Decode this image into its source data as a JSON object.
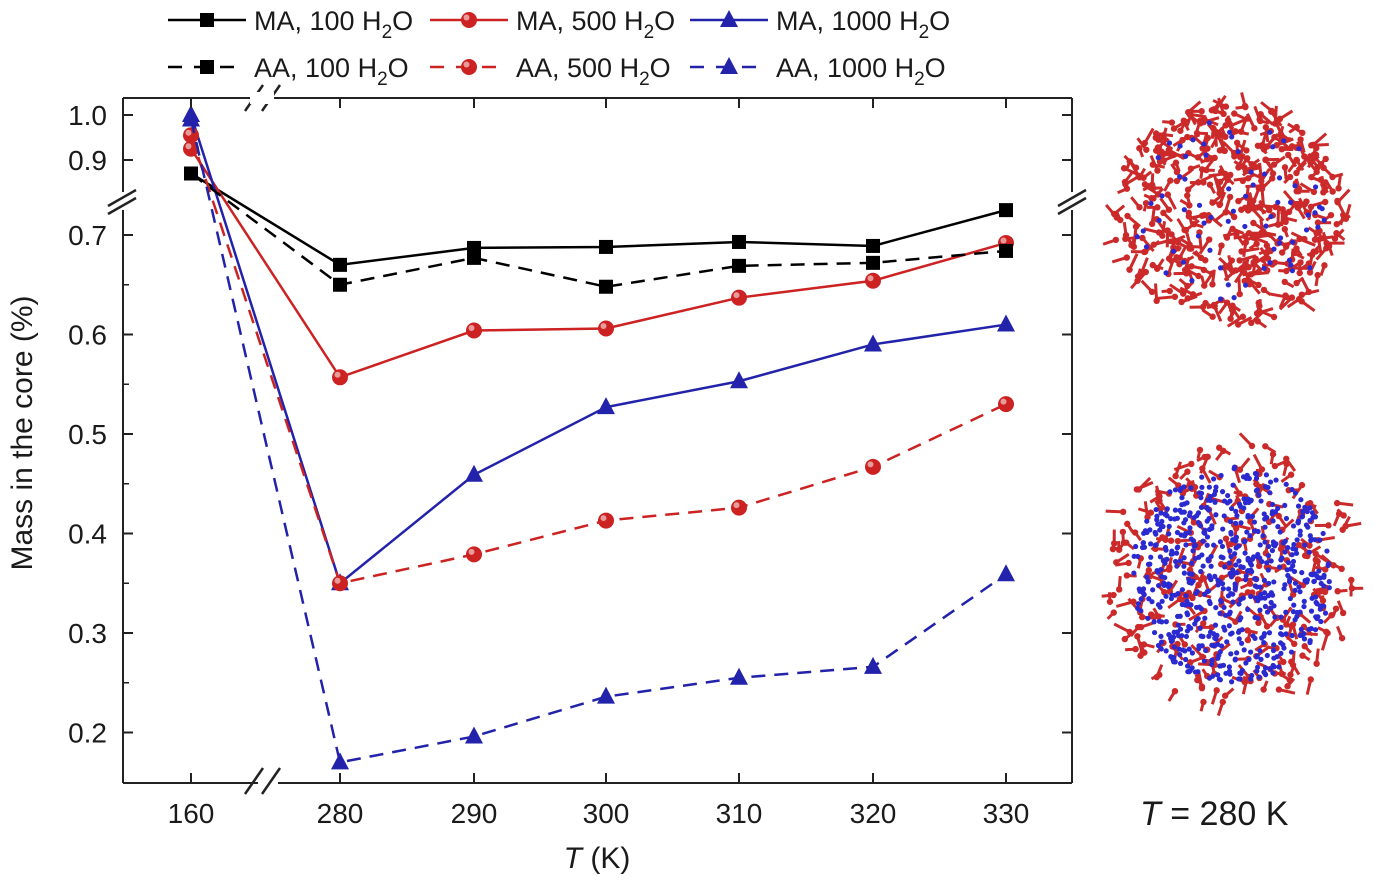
{
  "chart_data": {
    "type": "line",
    "xlabel_var": "T",
    "xlabel_unit": " (K)",
    "ylabel": "Mass in the core (%)",
    "x": [
      160,
      280,
      290,
      300,
      310,
      320,
      330
    ],
    "x_tick_labels": [
      "160",
      "280",
      "290",
      "300",
      "310",
      "320",
      "330"
    ],
    "y_ticks_lower": [
      0.2,
      0.3,
      0.4,
      0.5,
      0.6,
      0.7
    ],
    "y_ticks_upper": [
      0.9,
      1.0
    ],
    "ylim_lower": [
      0.15,
      0.75
    ],
    "ylim_upper": [
      0.85,
      1.02
    ],
    "x_axis_break": "between 160 and 280",
    "y_axis_break": "between 0.75 and 0.85",
    "legend_position": "top",
    "series": [
      {
        "name_main": "MA, 100 H",
        "name_sub": "2",
        "name_end": "O",
        "color": "#000000",
        "marker": "square",
        "dash": false,
        "values": [
          0.87,
          0.67,
          0.687,
          0.688,
          0.693,
          0.689,
          0.725
        ]
      },
      {
        "name_main": "MA, 500 H",
        "name_sub": "2",
        "name_end": "O",
        "color": "#cc2222",
        "marker": "circle",
        "dash": false,
        "values": [
          0.925,
          0.557,
          0.604,
          0.606,
          0.637,
          0.654,
          0.692
        ]
      },
      {
        "name_main": "MA, 1000 H",
        "name_sub": "2",
        "name_end": "O",
        "color": "#2222aa",
        "marker": "triangle",
        "dash": false,
        "values": [
          1.0,
          0.35,
          0.459,
          0.527,
          0.553,
          0.59,
          0.61
        ]
      },
      {
        "name_main": "AA, 100 H",
        "name_sub": "2",
        "name_end": "O",
        "color": "#000000",
        "marker": "square",
        "dash": true,
        "values": [
          0.87,
          0.65,
          0.677,
          0.648,
          0.669,
          0.672,
          0.684
        ]
      },
      {
        "name_main": "AA, 500 H",
        "name_sub": "2",
        "name_end": "O",
        "color": "#cc2222",
        "marker": "circle",
        "dash": true,
        "values": [
          0.955,
          0.35,
          0.379,
          0.413,
          0.426,
          0.467,
          0.53
        ]
      },
      {
        "name_main": "AA, 1000 H",
        "name_sub": "2",
        "name_end": "O",
        "color": "#2222aa",
        "marker": "triangle",
        "dash": true,
        "values": [
          0.99,
          0.17,
          0.196,
          0.236,
          0.255,
          0.266,
          0.359
        ]
      }
    ]
  },
  "side_panel": {
    "caption_var": "T",
    "caption_rest": " = 280 K",
    "cluster_colors": {
      "polymer": "#cc2a2a",
      "water": "#2a2ad0"
    },
    "images": [
      "cluster-top-molecular-render",
      "cluster-bottom-molecular-render"
    ]
  }
}
